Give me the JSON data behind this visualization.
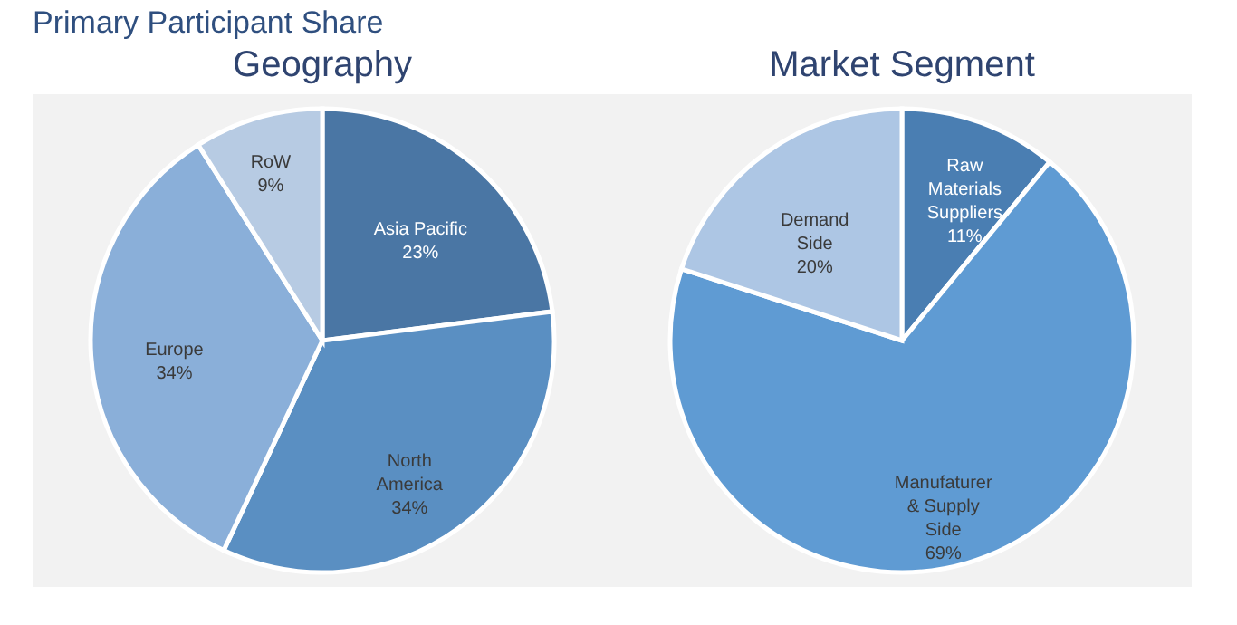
{
  "chart_data": [
    {
      "type": "pie",
      "title": "Geography",
      "annotations": [
        "Primary Participant Share"
      ],
      "categories": [
        "Asia Pacific",
        "North America",
        "Europe",
        "RoW"
      ],
      "values": [
        23,
        34,
        34,
        9
      ],
      "value_labels": [
        "23%",
        "34%",
        "34%",
        "9%"
      ],
      "colors": [
        "#4a76a4",
        "#5a8fc2",
        "#8aafd9",
        "#b7cbe3"
      ]
    },
    {
      "type": "pie",
      "title": "Market Segment",
      "categories": [
        "Raw Materials Suppliers",
        "Manufaturer & Supply Side",
        "Demand Side"
      ],
      "values": [
        11,
        69,
        20
      ],
      "value_labels": [
        "11%",
        "69%",
        "20%"
      ],
      "colors": [
        "#4a7eb2",
        "#5f9bd3",
        "#adc6e4"
      ]
    }
  ]
}
